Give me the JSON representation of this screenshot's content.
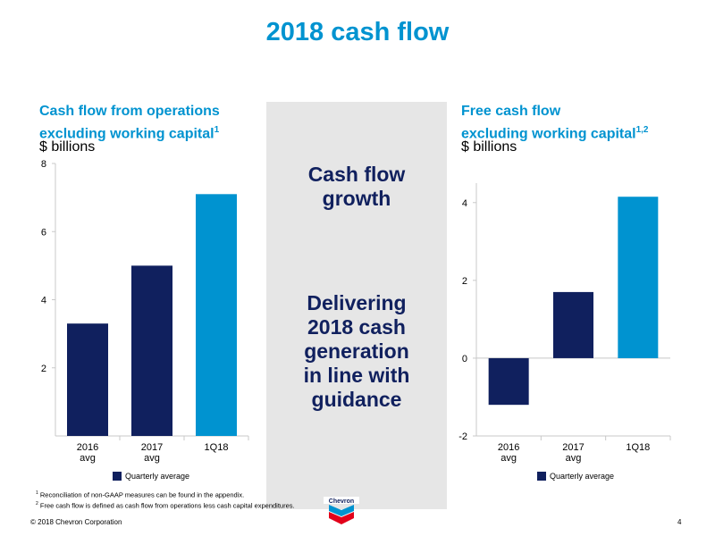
{
  "page": {
    "title": "2018 cash flow",
    "copyright": "© 2018 Chevron Corporation",
    "page_number": "4",
    "logo_text": "Chevron",
    "footnotes": [
      {
        "mark": "1",
        "text": "Reconciliation of non-GAAP measures can be found in the appendix."
      },
      {
        "mark": "2",
        "text": "Free cash flow is defined as cash flow from operations less cash capital expenditures."
      }
    ]
  },
  "center": {
    "line1": "Cash flow",
    "line2": "growth",
    "line3": "Delivering",
    "line4": "2018 cash",
    "line5": "generation",
    "line6": "in line with",
    "line7": "guidance"
  },
  "colors": {
    "dark": "#10205e",
    "light": "#0093d0",
    "accent_title": "#0093d0"
  },
  "chart_data": [
    {
      "type": "bar",
      "title_line1": "Cash flow from operations",
      "title_line2": "excluding working capital",
      "title_sup": "1",
      "unit": "$ billions",
      "categories": [
        [
          "2016",
          "avg"
        ],
        [
          "2017",
          "avg"
        ],
        [
          "1Q18"
        ]
      ],
      "values": [
        3.3,
        5.0,
        7.1
      ],
      "bar_colors": [
        "#10205e",
        "#10205e",
        "#0093d0"
      ],
      "ylim": [
        0,
        8
      ],
      "yticks": [
        2,
        4,
        6,
        8
      ],
      "legend": "Quarterly average"
    },
    {
      "type": "bar",
      "title_line1": "Free cash flow",
      "title_line2": "excluding working capital",
      "title_sup": "1,2",
      "unit": "$ billions",
      "categories": [
        [
          "2016",
          "avg"
        ],
        [
          "2017",
          "avg"
        ],
        [
          "1Q18"
        ]
      ],
      "values": [
        -1.2,
        1.7,
        4.15
      ],
      "bar_colors": [
        "#10205e",
        "#10205e",
        "#0093d0"
      ],
      "ylim": [
        -2,
        4.5
      ],
      "yticks": [
        -2,
        0,
        2,
        4
      ],
      "legend": "Quarterly average"
    }
  ]
}
